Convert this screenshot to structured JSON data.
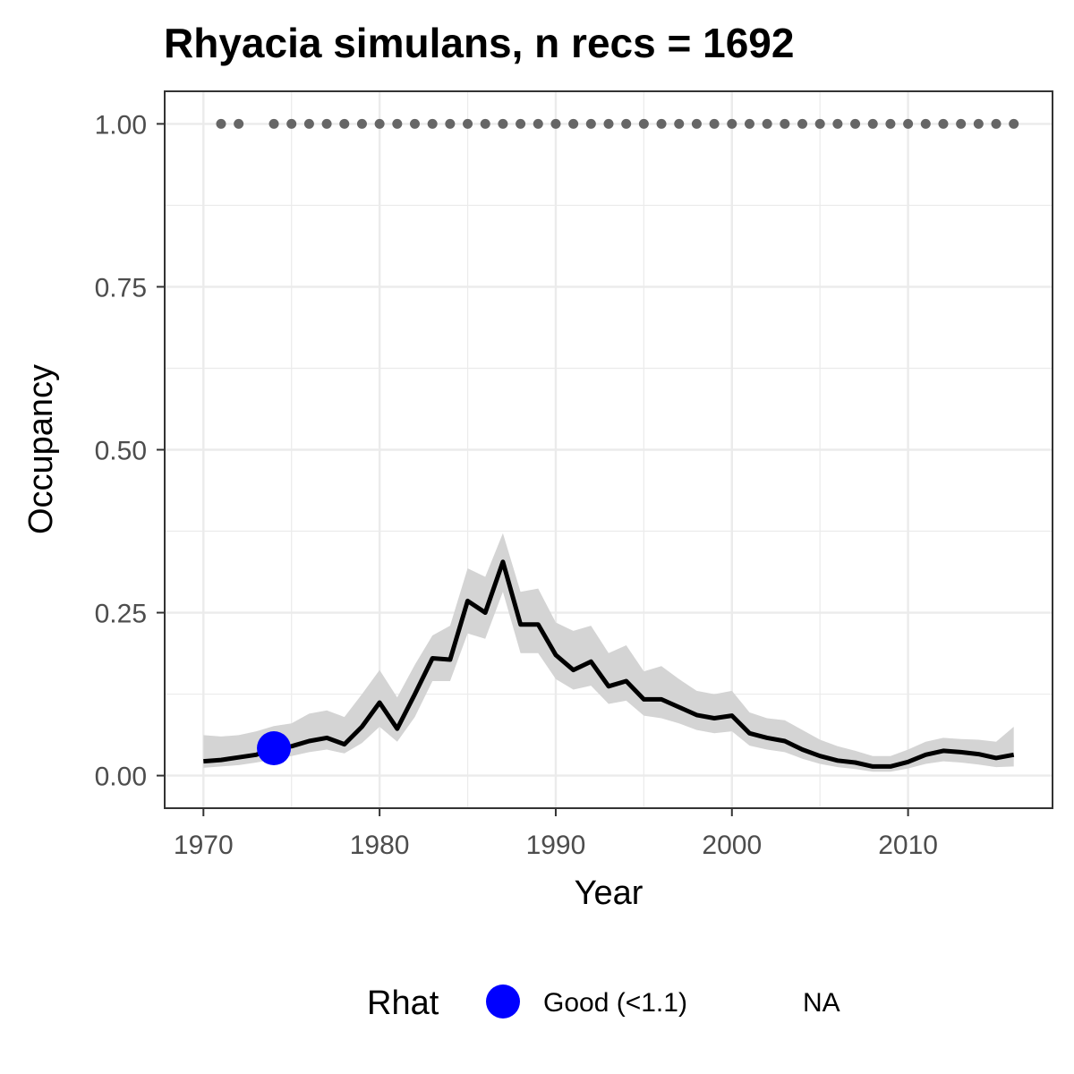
{
  "chart_data": {
    "type": "line",
    "title": "Rhyacia simulans, n recs = 1692",
    "xlabel": "Year",
    "ylabel": "Occupancy",
    "xlim": [
      1967.8,
      2018.2
    ],
    "ylim": [
      -0.05,
      1.05
    ],
    "x_ticks": [
      "1970",
      "1980",
      "1990",
      "2000",
      "2010"
    ],
    "y_ticks": [
      "0.00",
      "0.25",
      "0.50",
      "0.75",
      "1.00"
    ],
    "grid": true,
    "legend": {
      "position": "bottom",
      "title": "Rhat",
      "entries": [
        {
          "label": "Good (<1.1)",
          "color": "#0000ff"
        },
        {
          "label": "NA",
          "color": ""
        }
      ]
    },
    "colors": {
      "line": "#000000",
      "ribbon": "#d4d4d4",
      "rhat_dots": "#666666",
      "good_point": "#0000ff",
      "grid": "#ebebeb",
      "panel_border": "#333333"
    },
    "series": [
      {
        "name": "Occupancy",
        "x": [
          1970,
          1971,
          1972,
          1973,
          1974,
          1975,
          1976,
          1977,
          1978,
          1979,
          1980,
          1981,
          1982,
          1983,
          1984,
          1985,
          1986,
          1987,
          1988,
          1989,
          1990,
          1991,
          1992,
          1993,
          1994,
          1995,
          1996,
          1997,
          1998,
          1999,
          2000,
          2001,
          2002,
          2003,
          2004,
          2005,
          2006,
          2007,
          2008,
          2009,
          2010,
          2011,
          2012,
          2013,
          2014,
          2015,
          2016
        ],
        "y": [
          0.022,
          0.024,
          0.028,
          0.032,
          0.042,
          0.045,
          0.053,
          0.058,
          0.048,
          0.075,
          0.112,
          0.072,
          0.125,
          0.18,
          0.178,
          0.268,
          0.25,
          0.328,
          0.232,
          0.232,
          0.185,
          0.162,
          0.175,
          0.137,
          0.145,
          0.117,
          0.117,
          0.105,
          0.093,
          0.088,
          0.092,
          0.065,
          0.058,
          0.053,
          0.04,
          0.03,
          0.023,
          0.02,
          0.014,
          0.014,
          0.021,
          0.032,
          0.038,
          0.036,
          0.033,
          0.027,
          0.032
        ],
        "lower": [
          0.012,
          0.014,
          0.016,
          0.02,
          0.025,
          0.03,
          0.036,
          0.04,
          0.034,
          0.05,
          0.075,
          0.052,
          0.09,
          0.145,
          0.145,
          0.218,
          0.21,
          0.282,
          0.188,
          0.188,
          0.148,
          0.132,
          0.138,
          0.11,
          0.115,
          0.092,
          0.088,
          0.08,
          0.07,
          0.065,
          0.068,
          0.046,
          0.04,
          0.036,
          0.026,
          0.018,
          0.013,
          0.01,
          0.006,
          0.006,
          0.011,
          0.018,
          0.022,
          0.02,
          0.017,
          0.013,
          0.014
        ],
        "upper": [
          0.062,
          0.06,
          0.062,
          0.068,
          0.076,
          0.08,
          0.095,
          0.1,
          0.09,
          0.125,
          0.162,
          0.12,
          0.17,
          0.215,
          0.23,
          0.318,
          0.305,
          0.372,
          0.282,
          0.287,
          0.235,
          0.222,
          0.23,
          0.188,
          0.2,
          0.16,
          0.168,
          0.148,
          0.13,
          0.125,
          0.13,
          0.097,
          0.088,
          0.085,
          0.07,
          0.055,
          0.045,
          0.038,
          0.03,
          0.03,
          0.04,
          0.052,
          0.058,
          0.056,
          0.055,
          0.052,
          0.075
        ]
      }
    ],
    "good_rhat_points": [
      {
        "x": 1974,
        "y": 0.042
      }
    ],
    "rhat_dots": {
      "y": 1.0,
      "x": [
        1971,
        1972,
        1974,
        1975,
        1976,
        1977,
        1978,
        1979,
        1980,
        1981,
        1982,
        1983,
        1984,
        1985,
        1986,
        1987,
        1988,
        1989,
        1990,
        1991,
        1992,
        1993,
        1994,
        1995,
        1996,
        1997,
        1998,
        1999,
        2000,
        2001,
        2002,
        2003,
        2004,
        2005,
        2006,
        2007,
        2008,
        2009,
        2010,
        2011,
        2012,
        2013,
        2014,
        2015,
        2016
      ]
    }
  }
}
